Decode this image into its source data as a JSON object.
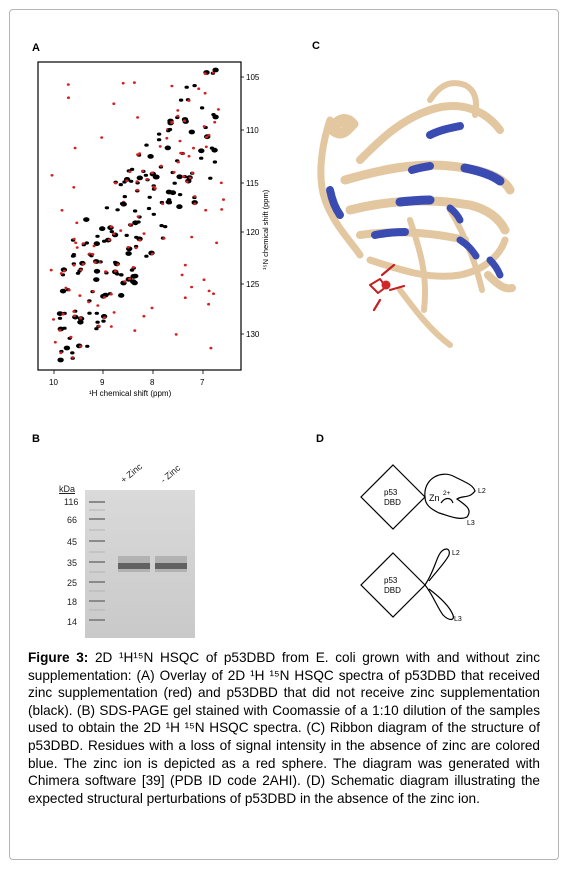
{
  "panels": {
    "a": "A",
    "b": "B",
    "c": "C",
    "d": "D"
  },
  "nmr": {
    "y_label": "¹⁵N chemical shift (ppm)",
    "x_label": "¹H chemical shift (ppm)",
    "x_ticks": [
      "10",
      "9",
      "8",
      "7"
    ],
    "y_ticks": [
      "105",
      "110",
      "115",
      "120",
      "125",
      "130"
    ]
  },
  "colors": {
    "red_spectrum": "#d42020",
    "black_spectrum": "#000000",
    "ribbon": "#e3c7a0",
    "loss_residues": "#3a4cb2",
    "zinc": "#d02828",
    "gel_background": "#cfcfcf"
  },
  "gel": {
    "unit": "kDa",
    "markers": [
      "116",
      "66",
      "45",
      "35",
      "25",
      "18",
      "14"
    ],
    "lanes": [
      "+ Zinc",
      "- Zinc"
    ]
  },
  "schematic": {
    "top": {
      "domain": "p53\nDBD",
      "domain_line1": "p53",
      "domain_line2": "DBD",
      "ion": "Zn",
      "charge": "2+",
      "loop_a": "L2",
      "loop_b": "L3"
    },
    "bottom": {
      "domain_line1": "p53",
      "domain_line2": "DBD",
      "loop_a": "L2",
      "loop_b": "L3"
    }
  },
  "caption": {
    "figure_label": "Figure 3:",
    "text": "2D ¹H¹⁵N HSQC of p53DBD from E. coli grown with and without zinc supplementation: (A) Overlay of 2D ¹H ¹⁵N HSQC spectra of p53DBD that received zinc supplementation (red) and p53DBD that did not receive zinc supplementation (black). (B) SDS-PAGE gel stained with Coomassie of a 1:10 dilution of the samples used to obtain the 2D ¹H ¹⁵N HSQC spectra. (C) Ribbon diagram of the structure of p53DBD. Residues with a loss of signal intensity in the absence of zinc are colored blue. The zinc ion is depicted as a red sphere. The diagram was generated with Chimera software [39] (PDB ID code 2AHI). (D) Schematic diagram illustrating the expected structural perturbations of p53DBD in the absence of the zinc ion."
  }
}
